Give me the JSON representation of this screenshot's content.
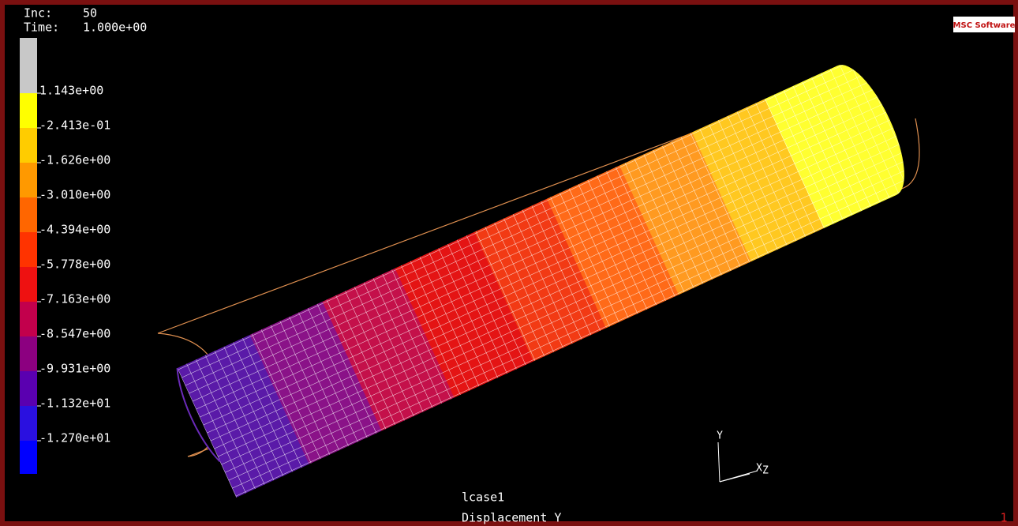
{
  "header": {
    "inc_label": "Inc:",
    "inc_value": "50",
    "time_label": "Time:",
    "time_value": "1.000e+00"
  },
  "logo": "MSC Software",
  "legend": {
    "labels": [
      "1.143e+00",
      "-2.413e-01",
      "-1.626e+00",
      "-3.010e+00",
      "-4.394e+00",
      "-5.778e+00",
      "-7.163e+00",
      "-8.547e+00",
      "-9.931e+00",
      "-1.132e+01",
      "-1.270e+01"
    ],
    "colors": [
      "#c8c8c8",
      "#ffff00",
      "#ffcc00",
      "#ff9900",
      "#ff6600",
      "#ff3300",
      "#ee1111",
      "#c2004c",
      "#8c0080",
      "#5a00b0",
      "#2a10e0",
      "#0000ff",
      "#808080"
    ]
  },
  "triad": {
    "y": "Y",
    "x": "X",
    "z": "Z"
  },
  "footer": {
    "load_case": "lcase1",
    "quantity": "Displacement Y",
    "view_number": "1"
  }
}
